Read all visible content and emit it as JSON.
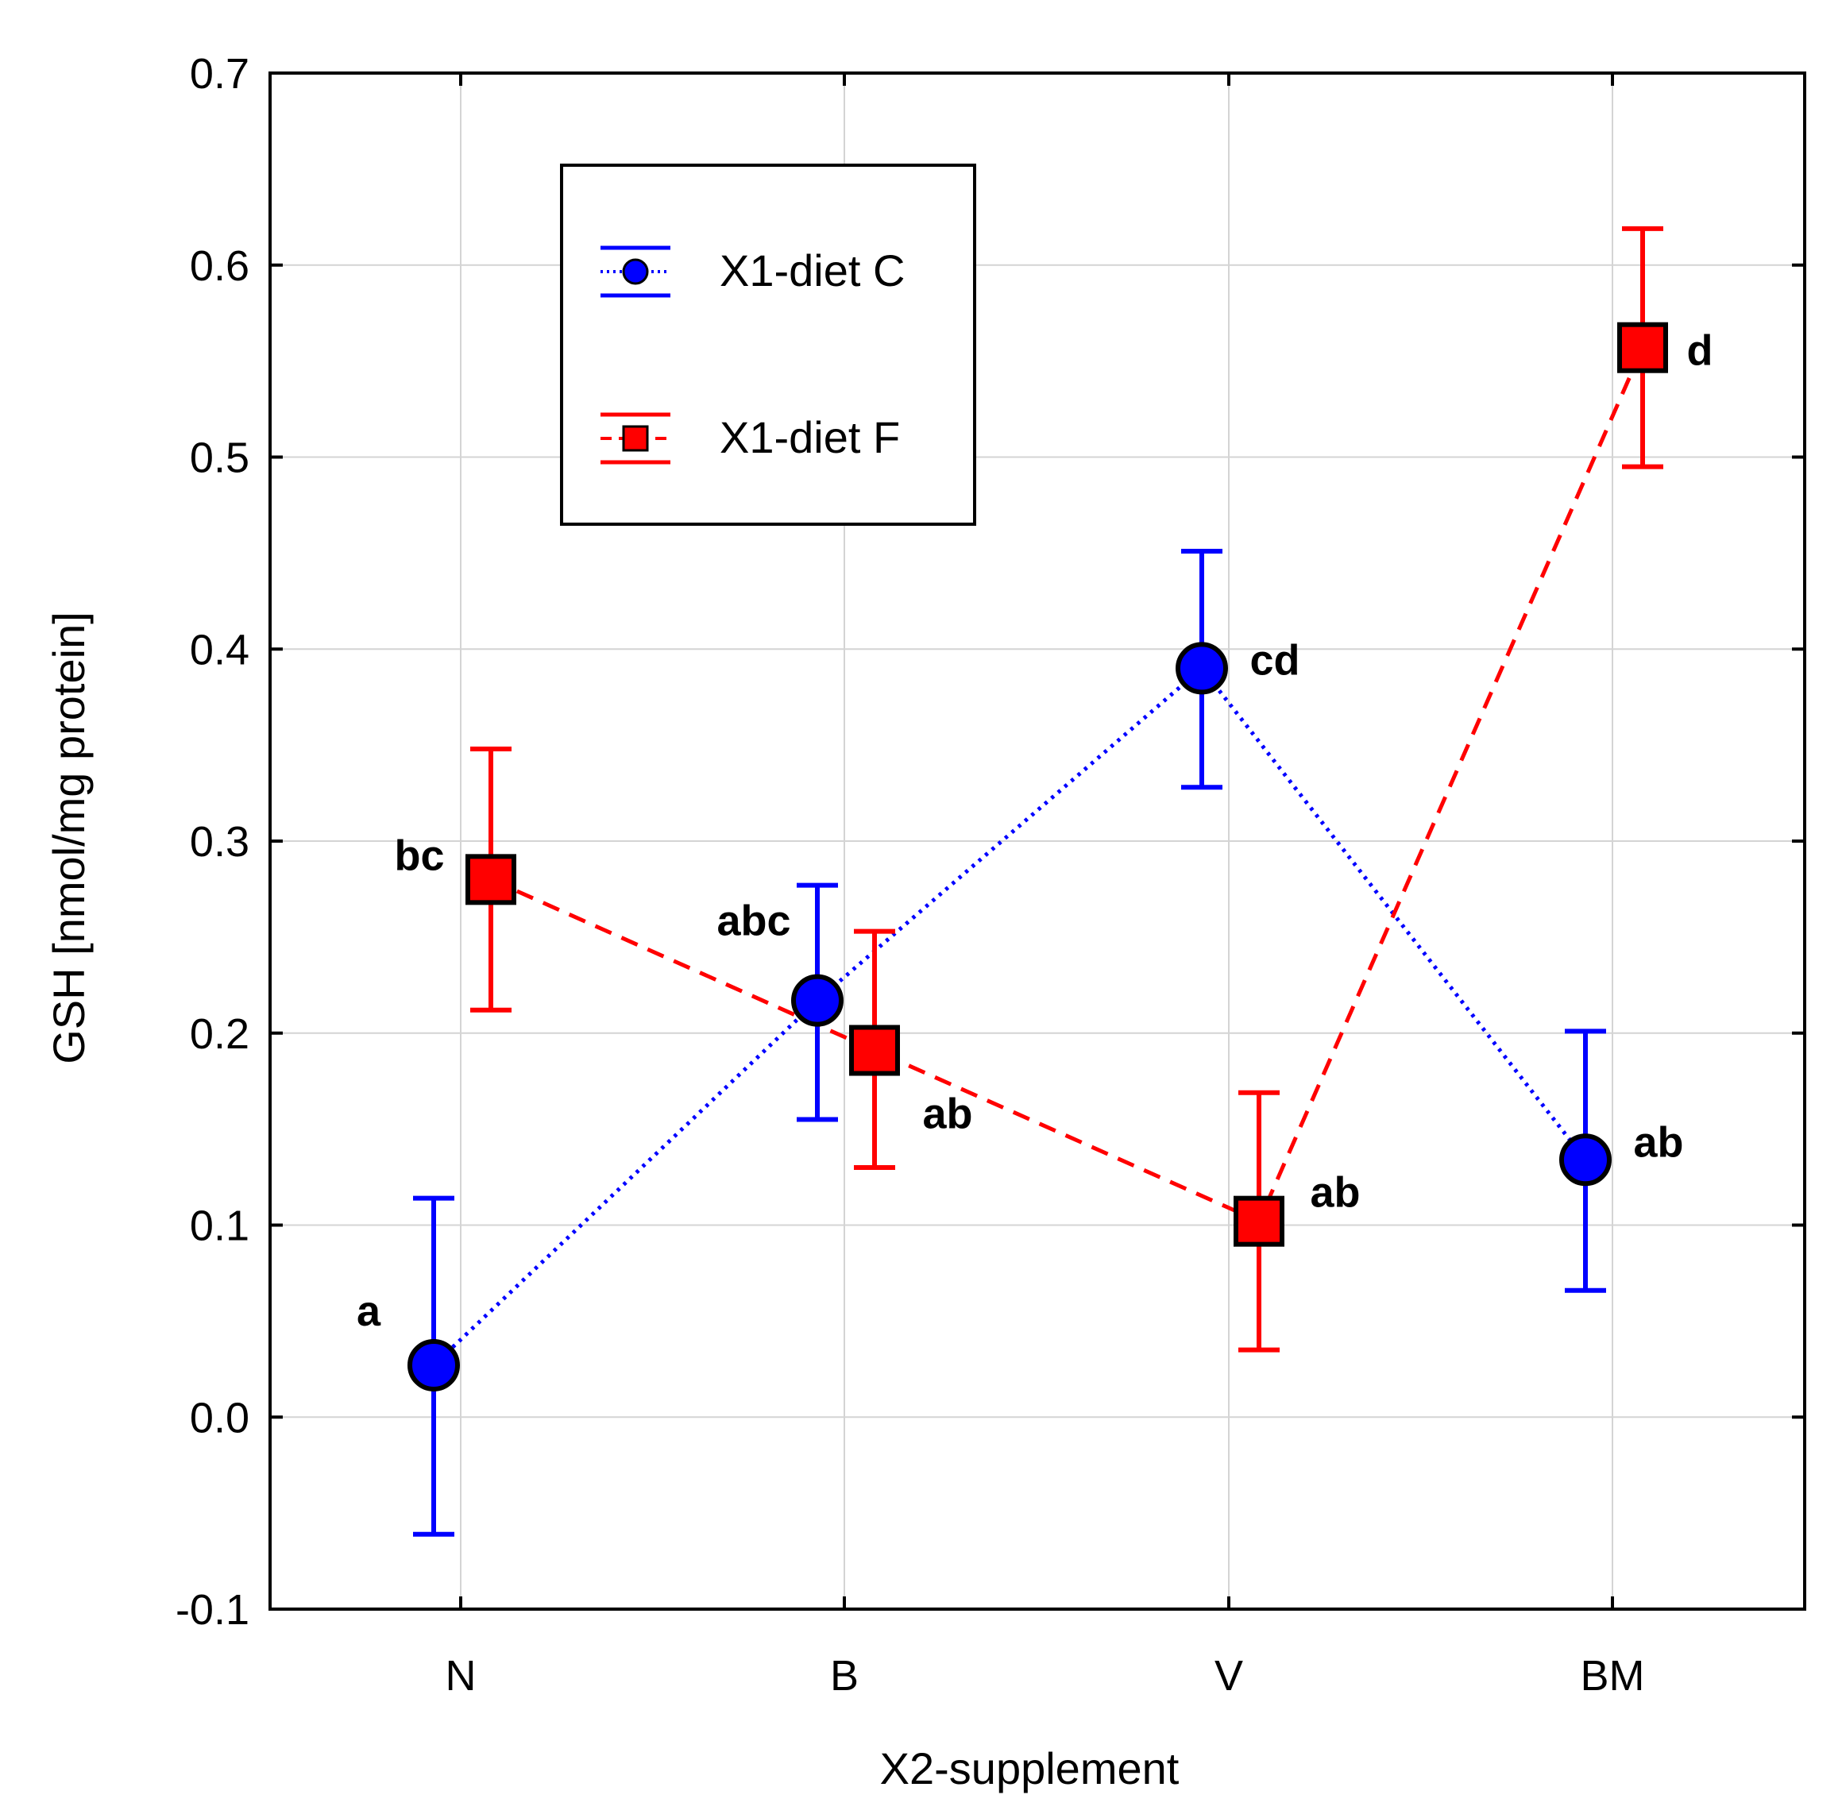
{
  "chart_data": {
    "type": "line",
    "title": "",
    "xlabel": "X2-supplement",
    "ylabel": "GSH [nmol/mg protein]",
    "categories": [
      "N",
      "B",
      "V",
      "BM"
    ],
    "ylim": [
      -0.1,
      0.7
    ],
    "yticks": [
      -0.1,
      0.0,
      0.1,
      0.2,
      0.3,
      0.4,
      0.5,
      0.6,
      0.7
    ],
    "ytick_labels": [
      "-0.1",
      "0.0",
      "0.1",
      "0.2",
      "0.3",
      "0.4",
      "0.5",
      "0.6",
      "0.7"
    ],
    "grid": true,
    "legend_position": "top-left",
    "series": [
      {
        "name": "X1-diet  C",
        "color": "#0000ff",
        "marker": "circle",
        "line_style": "dotted",
        "values": [
          0.027,
          0.217,
          0.39,
          0.134
        ],
        "err_low": [
          -0.061,
          0.155,
          0.328,
          0.066
        ],
        "err_high": [
          0.114,
          0.277,
          0.451,
          0.201
        ],
        "labels": [
          "a",
          "abc",
          "cd",
          "ab"
        ]
      },
      {
        "name": "X1-diet  F",
        "color": "#ff0000",
        "marker": "square",
        "line_style": "dashed",
        "values": [
          0.28,
          0.191,
          0.102,
          0.557
        ],
        "err_low": [
          0.212,
          0.13,
          0.035,
          0.495
        ],
        "err_high": [
          0.348,
          0.253,
          0.169,
          0.619
        ],
        "labels": [
          "bc",
          "ab",
          "ab",
          "d"
        ]
      }
    ]
  }
}
